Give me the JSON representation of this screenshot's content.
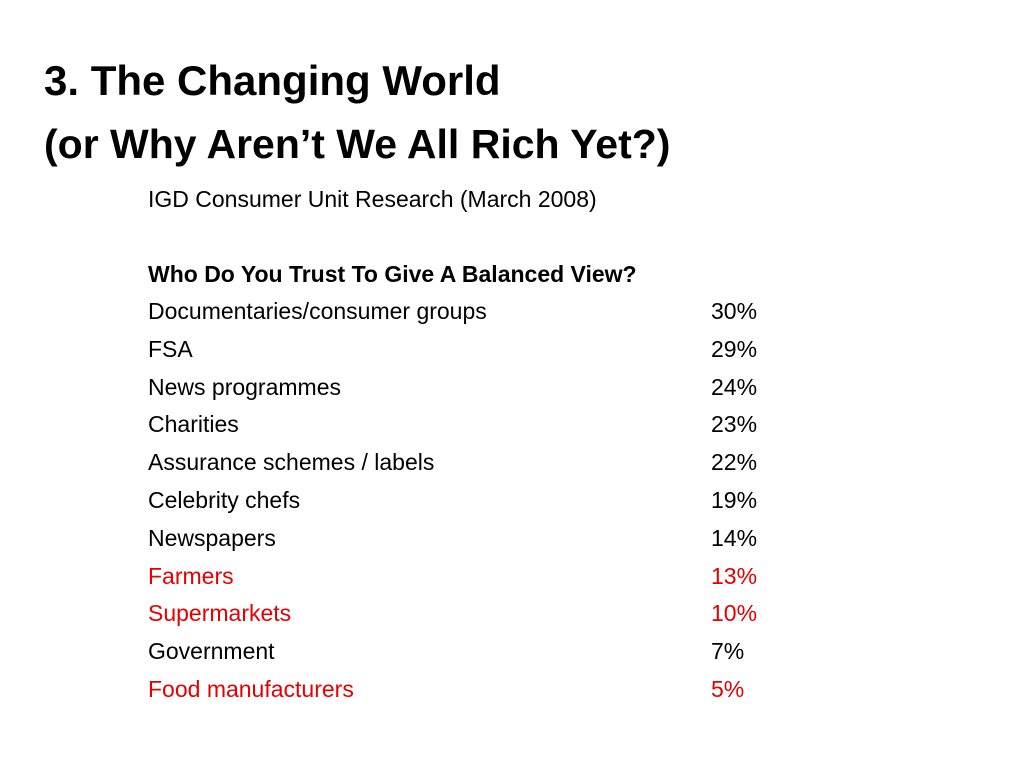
{
  "slide": {
    "title_line1": "3. The Changing World",
    "title_line2": "(or Why Aren’t We All Rich Yet?)",
    "source": "IGD Consumer Unit Research (March 2008)",
    "question": "Who Do You Trust To Give A Balanced View?",
    "highlight_color": "#e60000",
    "rows": [
      {
        "label": "Documentaries/consumer groups",
        "value": "30%",
        "highlight": false
      },
      {
        "label": "FSA",
        "value": "29%",
        "highlight": false
      },
      {
        "label": "News programmes",
        "value": "24%",
        "highlight": false
      },
      {
        "label": "Charities",
        "value": "23%",
        "highlight": false
      },
      {
        "label": "Assurance schemes / labels",
        "value": "22%",
        "highlight": false
      },
      {
        "label": "Celebrity chefs",
        "value": "19%",
        "highlight": false
      },
      {
        "label": "Newspapers",
        "value": "14%",
        "highlight": false
      },
      {
        "label": "Farmers",
        "value": "13%",
        "highlight": true
      },
      {
        "label": "Supermarkets",
        "value": "10%",
        "highlight": true
      },
      {
        "label": "Government",
        "value": "7%",
        "highlight": false
      },
      {
        "label": "Food manufacturers",
        "value": "5%",
        "highlight": true
      }
    ]
  }
}
